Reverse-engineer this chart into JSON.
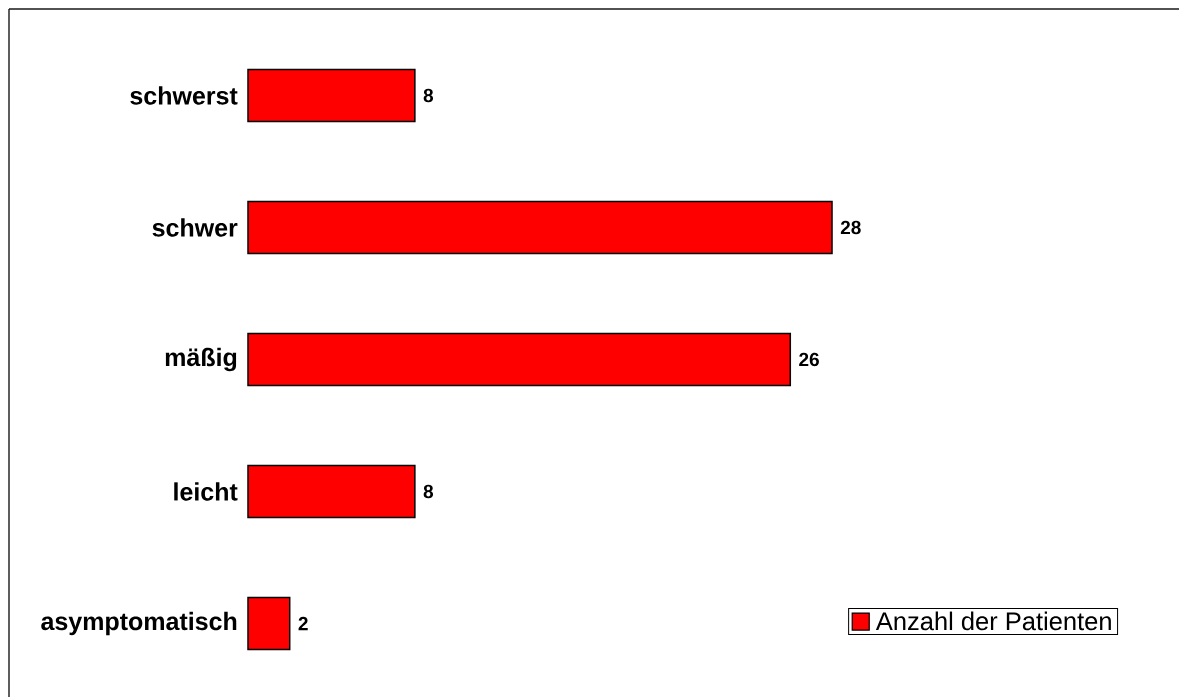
{
  "chart_data": {
    "type": "bar",
    "orientation": "horizontal",
    "categories": [
      "schwerst",
      "schwer",
      "mäßig",
      "leicht",
      "asymptomatisch"
    ],
    "series": [
      {
        "name": "Anzahl der Patienten",
        "color": "#ff0000",
        "values": [
          8,
          28,
          26,
          8,
          2
        ]
      }
    ],
    "data_labels": true,
    "legend": "bottom right",
    "tick_labels": "y"
  }
}
